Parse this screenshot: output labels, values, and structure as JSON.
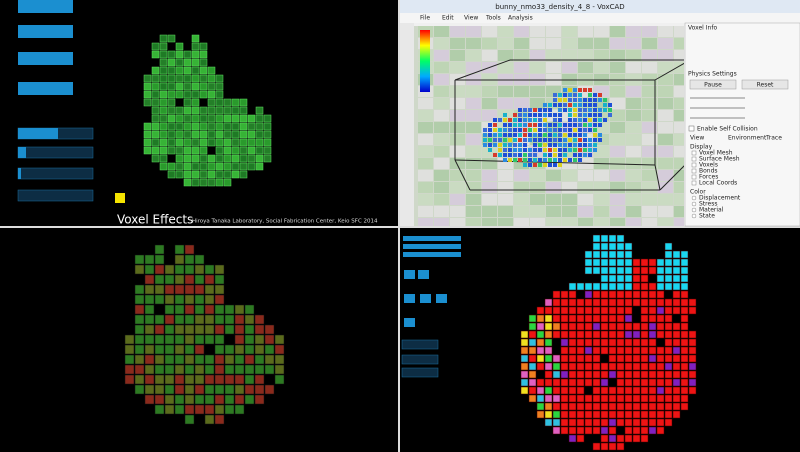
{
  "panels": {
    "top_left": {
      "caption": "Voxel Effects",
      "credit": "Hiroya Tanaka Laboratory, Social Fabrication Center, Keio SFC 2014"
    },
    "top_right": {
      "window_title": "bunny_nmo33_density_4_8 - VoxCAD",
      "menu": [
        "File",
        "Edit",
        "View",
        "Tools",
        "Analysis"
      ],
      "sidebar": {
        "voxel_info": "Voxel Info",
        "physics": "Physics Settings",
        "buttons": [
          "Pause",
          "Reset"
        ],
        "self_collision": "Enable Self Collision",
        "tabs": [
          "View",
          "Environment",
          "Trace"
        ],
        "display_title": "Display",
        "display_items": [
          "Voxel Mesh",
          "Surface Mesh",
          "Voxels",
          "Bonds",
          "Forces",
          "Local Coords"
        ],
        "color_title": "Color",
        "color_items": [
          "Displacement",
          "Stress",
          "Material",
          "State"
        ]
      }
    }
  }
}
